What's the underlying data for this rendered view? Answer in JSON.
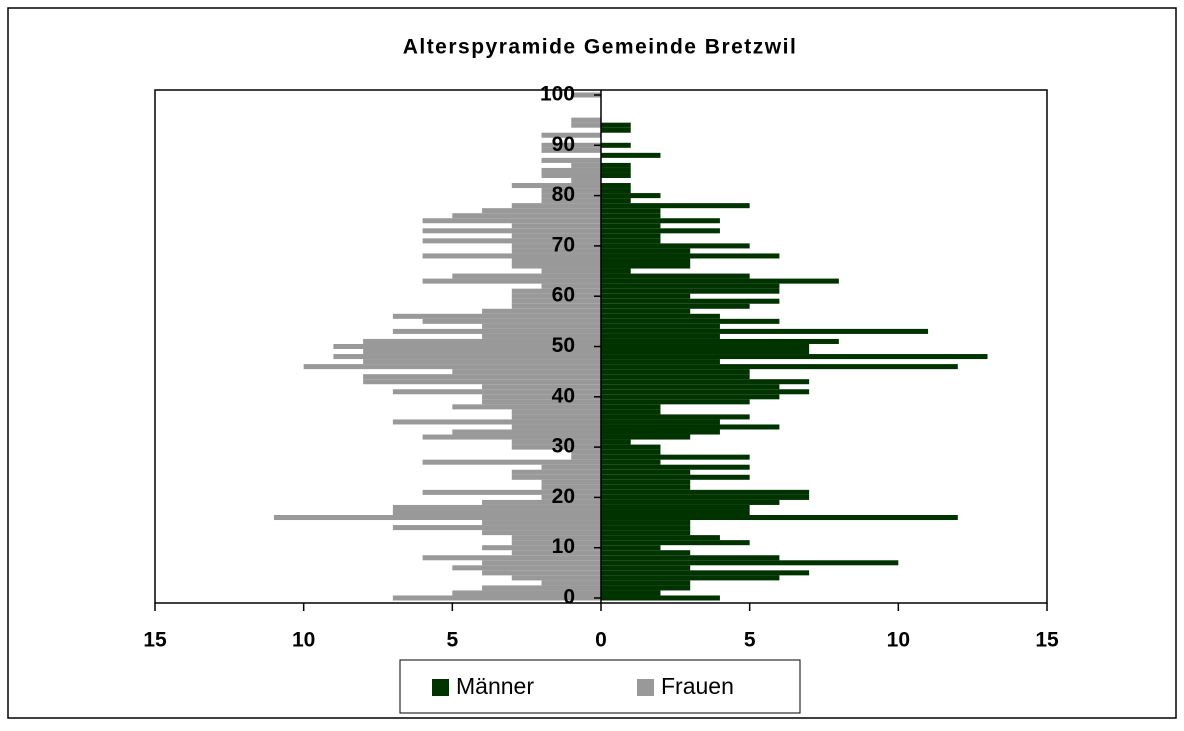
{
  "chart_data": {
    "type": "pyramid",
    "title": "Alterspyramide Gemeinde Bretzwil",
    "series": [
      {
        "name": "Männer",
        "color": "#003300",
        "side": "right",
        "values": [
          4,
          2,
          3,
          3,
          6,
          7,
          3,
          10,
          6,
          3,
          2,
          5,
          4,
          3,
          3,
          3,
          12,
          5,
          5,
          6,
          7,
          7,
          3,
          3,
          5,
          3,
          5,
          2,
          5,
          2,
          2,
          1,
          3,
          4,
          6,
          4,
          5,
          2,
          2,
          5,
          6,
          7,
          6,
          7,
          5,
          5,
          12,
          4,
          13,
          7,
          7,
          8,
          4,
          11,
          4,
          6,
          4,
          3,
          5,
          6,
          3,
          6,
          6,
          8,
          5,
          1,
          3,
          3,
          6,
          3,
          5,
          2,
          2,
          4,
          2,
          4,
          2,
          2,
          5,
          1,
          2,
          1,
          1,
          0,
          1,
          1,
          1,
          0,
          2,
          0,
          1,
          0,
          0,
          1,
          1,
          0,
          0,
          0,
          0,
          0,
          0
        ]
      },
      {
        "name": "Frauen",
        "color": "#999999",
        "side": "left",
        "values": [
          7,
          5,
          4,
          2,
          3,
          4,
          5,
          4,
          6,
          3,
          4,
          3,
          3,
          4,
          7,
          4,
          11,
          7,
          7,
          4,
          2,
          6,
          2,
          2,
          3,
          3,
          2,
          6,
          1,
          1,
          3,
          3,
          6,
          5,
          3,
          7,
          3,
          3,
          5,
          4,
          4,
          7,
          4,
          8,
          8,
          5,
          10,
          8,
          9,
          8,
          9,
          8,
          4,
          7,
          4,
          6,
          7,
          4,
          3,
          3,
          3,
          3,
          2,
          6,
          5,
          2,
          3,
          3,
          6,
          3,
          3,
          6,
          3,
          6,
          3,
          6,
          5,
          4,
          3,
          2,
          2,
          2,
          3,
          1,
          2,
          2,
          1,
          2,
          0,
          2,
          2,
          0,
          2,
          0,
          1,
          1,
          0,
          0,
          0,
          0,
          1
        ]
      }
    ],
    "xlim": [
      -15,
      15
    ],
    "xticks": [
      {
        "value": -15,
        "label": "15"
      },
      {
        "value": -10,
        "label": "10"
      },
      {
        "value": -5,
        "label": "5"
      },
      0,
      5,
      10,
      15
    ],
    "ylim": [
      0,
      100
    ],
    "yticks": [
      0,
      10,
      20,
      30,
      40,
      50,
      60,
      70,
      80,
      90,
      100
    ],
    "legend": "bottom"
  }
}
